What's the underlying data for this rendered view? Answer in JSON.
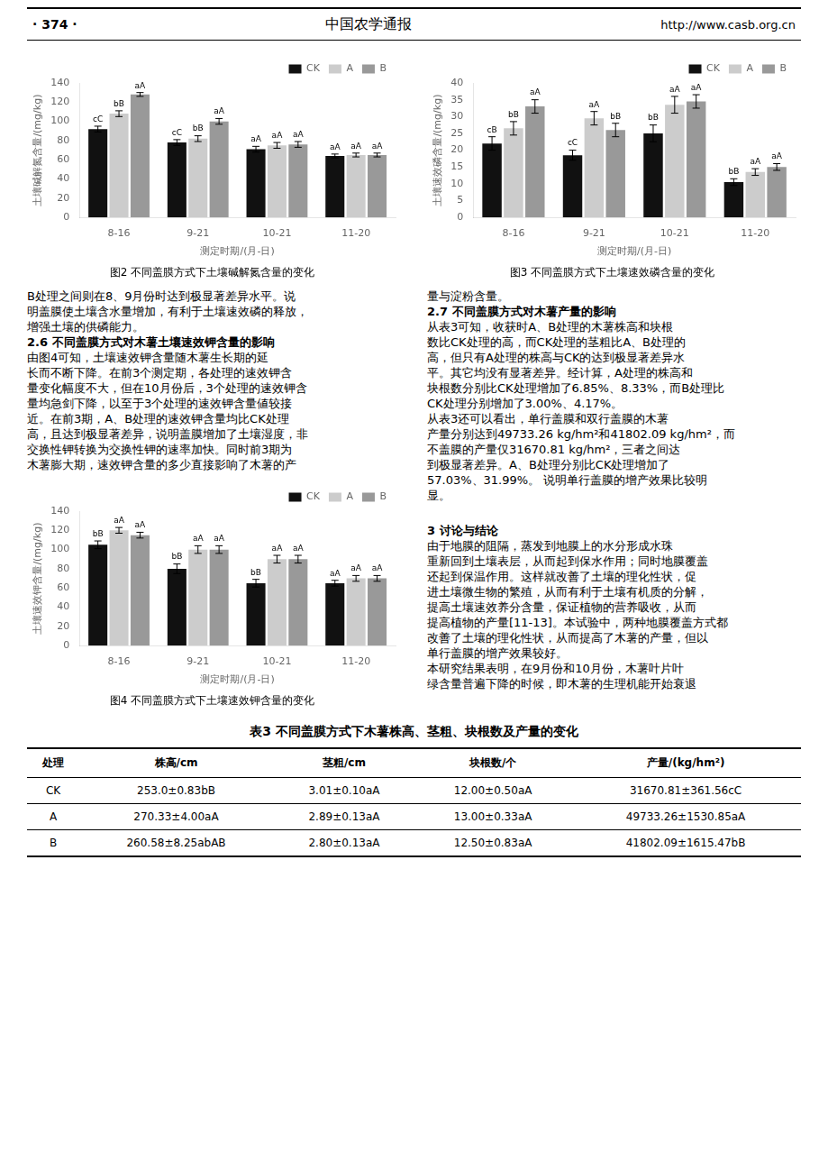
{
  "page_header": {
    "left": "· 374 ·",
    "center": "中国农学通报",
    "right": "http://www.casb.org.cn"
  },
  "chart_data": [
    {
      "type": "bar",
      "title": "图2 不同盖膜方式下土壤碱解氮含量的变化",
      "xlabel": "测定时期/(月-日)",
      "ylabel": "土壤碱解氮含量/(mg/kg)",
      "categories": [
        "8-16",
        "9-21",
        "10-21",
        "11-20"
      ],
      "series": [
        {
          "name": "CK",
          "color": "#111111",
          "values": [
            92,
            78,
            71,
            64
          ],
          "errors": [
            3,
            3,
            3,
            2
          ],
          "annotations": [
            "cC",
            "cC",
            "aA",
            "aA"
          ]
        },
        {
          "name": "A",
          "color": "#cccccc",
          "values": [
            108,
            82,
            75,
            65
          ],
          "errors": [
            3,
            3,
            3,
            2
          ],
          "annotations": [
            "bB",
            "bB",
            "aA",
            "aA"
          ]
        },
        {
          "name": "B",
          "color": "#999999",
          "values": [
            128,
            100,
            76,
            65
          ],
          "errors": [
            2,
            3,
            3,
            2
          ],
          "annotations": [
            "aA",
            "aA",
            "aA",
            "aA"
          ]
        }
      ],
      "ylim": [
        0,
        140
      ],
      "yticks": [
        0,
        20,
        40,
        60,
        80,
        100,
        120,
        140
      ],
      "grid": false,
      "legend": "upper right"
    },
    {
      "type": "bar",
      "title": "图3 不同盖膜方式下土壤速效磷含量的变化",
      "xlabel": "测定时期/(月-日)",
      "ylabel": "土壤速效磷含量/(mg/kg)",
      "categories": [
        "8-16",
        "9-21",
        "10-21",
        "11-20"
      ],
      "series": [
        {
          "name": "CK",
          "color": "#111111",
          "values": [
            22,
            18.5,
            25,
            10.5
          ],
          "errors": [
            2,
            1.5,
            2.5,
            1
          ],
          "annotations": [
            "cB",
            "cC",
            "bB",
            "bB"
          ]
        },
        {
          "name": "A",
          "color": "#cccccc",
          "values": [
            26.5,
            29.5,
            33.5,
            13.5
          ],
          "errors": [
            2,
            2,
            2.5,
            1
          ],
          "annotations": [
            "bB",
            "aA",
            "aA",
            "aA"
          ]
        },
        {
          "name": "B",
          "color": "#999999",
          "values": [
            33,
            26,
            34.5,
            15
          ],
          "errors": [
            2,
            2,
            2,
            1
          ],
          "annotations": [
            "aA",
            "bB",
            "aA",
            "aA"
          ]
        }
      ],
      "ylim": [
        0,
        40
      ],
      "yticks": [
        0,
        5,
        10,
        15,
        20,
        25,
        30,
        35,
        40
      ],
      "grid": false,
      "legend": "upper right"
    },
    {
      "type": "bar",
      "title": "图4 不同盖膜方式下土壤速效钾含量的变化",
      "xlabel": "测定时期/(月-日)",
      "ylabel": "土壤速效钾含量/(mg/kg)",
      "categories": [
        "8-16",
        "9-21",
        "10-21",
        "11-20"
      ],
      "series": [
        {
          "name": "CK",
          "color": "#111111",
          "values": [
            105,
            80,
            65,
            65
          ],
          "errors": [
            4,
            5,
            4,
            3
          ],
          "annotations": [
            "bB",
            "bB",
            "bB",
            "aA"
          ]
        },
        {
          "name": "A",
          "color": "#cccccc",
          "values": [
            120,
            100,
            90,
            70
          ],
          "errors": [
            3,
            4,
            4,
            3
          ],
          "annotations": [
            "aA",
            "aA",
            "aA",
            "aA"
          ]
        },
        {
          "name": "B",
          "color": "#999999",
          "values": [
            115,
            100,
            90,
            70
          ],
          "errors": [
            3,
            4,
            4,
            3
          ],
          "annotations": [
            "aA",
            "aA",
            "aA",
            "aA"
          ]
        }
      ],
      "ylim": [
        0,
        140
      ],
      "yticks": [
        0,
        20,
        40,
        60,
        80,
        100,
        120,
        140
      ],
      "grid": false,
      "legend": "upper right"
    }
  ],
  "left_col_lines": [
    {
      "text": "B处理之间则在8、9月份时达到极显著差异水平。说",
      "bold": false
    },
    {
      "text": "明盖膜使土壤含水量增加，有利于土壤速效磷的释放，",
      "bold": false
    },
    {
      "text": "增强土壤的供磷能力。",
      "bold": false
    },
    {
      "text": "2.6 不同盖膜方式对木薯土壤速效钾含量的影响",
      "bold": true
    },
    {
      "text": "由图4可知，土壤速效钾含量随木薯生长期的延",
      "bold": false
    },
    {
      "text": "长而不断下降。在前3个测定期，各处理的速效钾含",
      "bold": false
    },
    {
      "text": "量变化幅度不大，但在10月份后，3个处理的速效钾含",
      "bold": false
    },
    {
      "text": "量均急剑下降，以至于3个处理的速效钾含量値较接",
      "bold": false
    },
    {
      "text": "近。在前3期，A、B处理的速效钾含量均比CK处理",
      "bold": false
    },
    {
      "text": "高，且达到极显著差异，说明盖膜增加了土壤湿度，非",
      "bold": false
    },
    {
      "text": "交换性钾转换为交换性钾的速率加快。同时前3期为",
      "bold": false
    },
    {
      "text": "木薯膨大期，速效钾含量的多少直接影响了木薯的产",
      "bold": false
    }
  ],
  "right_col_lines": [
    {
      "text": "量与淀粉含量。",
      "bold": false
    },
    {
      "text": "2.7 不同盖膜方式对木薯产量的影响",
      "bold": true
    },
    {
      "text": "从表3可知，收获时A、B处理的木薯株高和块根",
      "bold": false
    },
    {
      "text": "数比CK处理的高，而CK处理的茎粗比A、B处理的",
      "bold": false
    },
    {
      "text": "高，但只有A处理的株高与CK的达到极显著差异水",
      "bold": false
    },
    {
      "text": "平。其它均没有显著差异。经计算，A处理的株高和",
      "bold": false
    },
    {
      "text": "块根数分别比CK处理增加了6.85%、8.33%，而B处理比",
      "bold": false
    },
    {
      "text": "CK处理分别增加了3.00%、4.17%。",
      "bold": false
    },
    {
      "text": "从表3还可以看出，单行盖膜和双行盖膜的木薯",
      "bold": false
    },
    {
      "text": "产量分别达到49733.26 kg/hm²和41802.09 kg/hm²，而",
      "bold": false
    },
    {
      "text": "不盖膜的产量仅31670.81 kg/hm²，三者之间达",
      "bold": false
    },
    {
      "text": "到极显著差异。A、B处理分别比CK处理增加了",
      "bold": false
    },
    {
      "text": "57.03%、31.99%。 说明单行盖膜的增产效果比较明",
      "bold": false
    },
    {
      "text": "显。",
      "bold": false
    }
  ],
  "right_col2_lines": [
    {
      "text": "3 讨论与结论",
      "bold": true
    },
    {
      "text": "由于地膜的阻隔，蒸发到地膜上的水分形成水珠",
      "bold": false
    },
    {
      "text": "重新回到土壤表层，从而起到保水作用；同时地膜覆盖",
      "bold": false
    },
    {
      "text": "还起到保温作用。这样就改善了土壤的理化性状，促",
      "bold": false
    },
    {
      "text": "进土壤微生物的繁殖，从而有利于土壤有机质的分解，",
      "bold": false
    },
    {
      "text": "提高土壤速效养分含量，保证植物的营养吸收，从而",
      "bold": false
    },
    {
      "text": "提高植物的产量[11-13]。本试验中，两种地膜覆盖方式都",
      "bold": false
    },
    {
      "text": "改善了土壤的理化性状，从而提高了木薯的产量，但以",
      "bold": false
    },
    {
      "text": "单行盖膜的增产效果较好。",
      "bold": false
    },
    {
      "text": "本研究结果表明，在9月份和10月份，木薯叶片叶",
      "bold": false
    },
    {
      "text": "绿含量普遍下降的时候，即木薯的生理机能开始衰退",
      "bold": false
    }
  ],
  "table": {
    "title": "表3 不同盖膜方式下木薯株高、茎粗、块根数及产量的变化",
    "headers": [
      "处理",
      "株高/cm",
      "茎粗/cm",
      "块根数/个",
      "产量/(kg/hm²)"
    ],
    "rows": [
      [
        "CK",
        "253.0±0.83bB",
        "3.01±0.10aA",
        "12.00±0.50aA",
        "31670.81±361.56cC"
      ],
      [
        "A",
        "270.33±4.00aA",
        "2.89±0.13aA",
        "13.00±0.33aA",
        "49733.26±1530.85aA"
      ],
      [
        "B",
        "260.58±8.25abAB",
        "2.80±0.13aA",
        "12.50±0.83aA",
        "41802.09±1615.47bB"
      ]
    ]
  }
}
